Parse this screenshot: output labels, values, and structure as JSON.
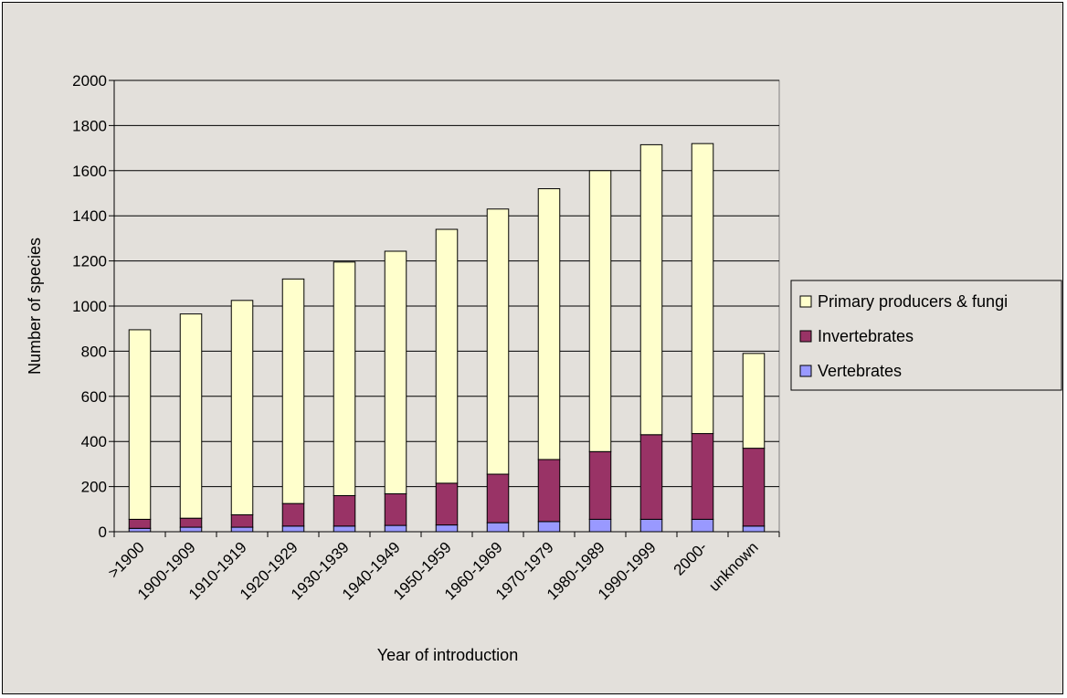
{
  "chart_data": {
    "type": "bar",
    "stacked": true,
    "title": "",
    "xlabel": "Year of introduction",
    "ylabel": "Number of species",
    "ylim": [
      0,
      2000
    ],
    "yticks": [
      "0",
      "200",
      "400",
      "600",
      "800",
      "1000",
      "1200",
      "1400",
      "1600",
      "1800",
      "2000"
    ],
    "grid": true,
    "legend_position": "right",
    "categories": [
      ">1900",
      "1900-1909",
      "1910-1919",
      "1920-1929",
      "1930-1939",
      "1940-1949",
      "1950-1959",
      "1960-1969",
      "1970-1979",
      "1980-1989",
      "1990-1999",
      "2000-",
      "unknown"
    ],
    "series": [
      {
        "name": "Vertebrates",
        "color": "#9999ff",
        "values": [
          15,
          20,
          20,
          25,
          25,
          28,
          30,
          40,
          45,
          55,
          55,
          55,
          25
        ]
      },
      {
        "name": "Invertebrates",
        "color": "#993366",
        "values": [
          40,
          40,
          55,
          100,
          135,
          140,
          185,
          215,
          275,
          300,
          375,
          380,
          345
        ]
      },
      {
        "name": "Primary producers & fungi",
        "color": "#ffffcc",
        "values": [
          840,
          905,
          950,
          995,
          1035,
          1075,
          1125,
          1175,
          1200,
          1245,
          1285,
          1285,
          420
        ]
      }
    ]
  }
}
